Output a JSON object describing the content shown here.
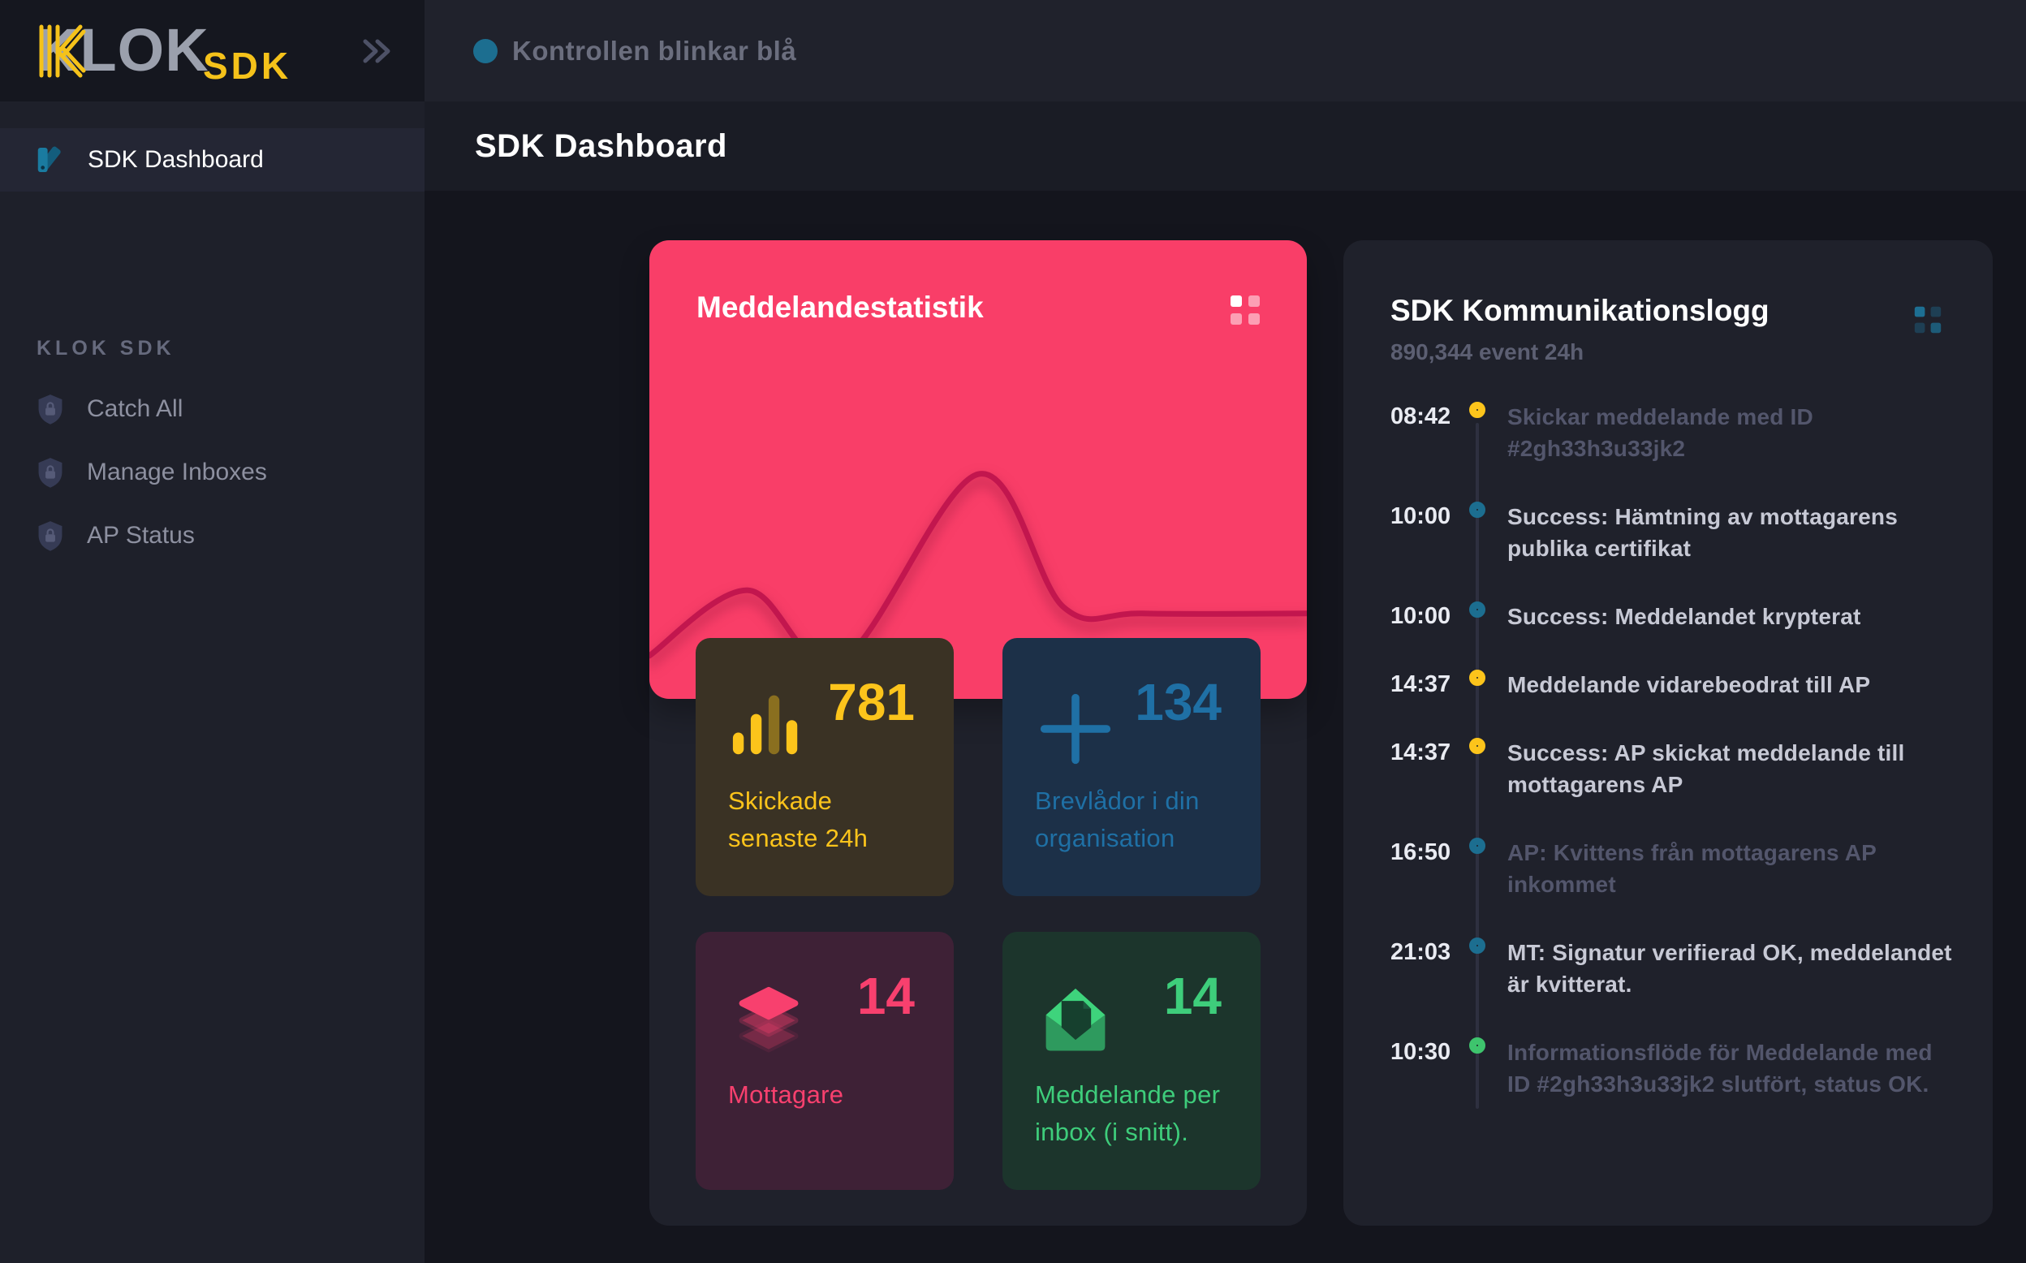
{
  "brand": {
    "name_main": "KLOK",
    "name_sub": "SDK",
    "accent_yellow": "#f5c21a",
    "gray": "#9ba0ad"
  },
  "topbar": {
    "status_text": "Kontrollen blinkar blå",
    "status_dot_color": "#1c6e90"
  },
  "page": {
    "title": "SDK Dashboard"
  },
  "sidebar": {
    "active_item": {
      "label": "SDK Dashboard"
    },
    "section_label": "KLOK SDK",
    "items": [
      {
        "label": "Catch All"
      },
      {
        "label": "Manage Inboxes"
      },
      {
        "label": "AP Status"
      }
    ]
  },
  "stats_card": {
    "title": "Meddelandestatistik",
    "bg_color": "#f93e68",
    "menu_icon_color": "#ffffff",
    "tiles": [
      {
        "value": "781",
        "label": "Skickade senaste 24h",
        "icon": "bar-chart-icon",
        "color": "#fcc41b",
        "bg": "#3a3224"
      },
      {
        "value": "134",
        "label": "Brevlådor i din organisation",
        "icon": "plus-icon",
        "color": "#1f70a5",
        "bg": "#1c3048"
      },
      {
        "value": "14",
        "label": "Mottagare",
        "icon": "layers-icon",
        "color": "#f8406e",
        "bg": "#3e2136"
      },
      {
        "value": "14",
        "label": "Meddelande per inbox (i snitt).",
        "icon": "envelope-open-icon",
        "color": "#3ecd7b",
        "bg": "#1c352c"
      }
    ]
  },
  "chart_data": {
    "type": "line",
    "title": "Meddelandestatistik",
    "x": [
      0,
      15,
      29,
      50,
      63,
      75,
      100
    ],
    "y": [
      7,
      38,
      4,
      93,
      30,
      27,
      27
    ],
    "x_range": [
      0,
      100
    ],
    "y_range": [
      0,
      100
    ],
    "xlabel": "",
    "ylabel": "",
    "grid": false,
    "axes_visible": false,
    "legend": "none",
    "line_color": "#c2164e"
  },
  "log_panel": {
    "title": "SDK Kommunikationslogg",
    "subtitle": "890,344 event 24h",
    "menu_icon_color": "#1d6f93",
    "events": [
      {
        "time": "08:42",
        "marker_color": "#fcc41b",
        "text": "Skickar meddelande med ID #2gh33h3u33jk2",
        "text_color": "#53566c"
      },
      {
        "time": "10:00",
        "marker_color": "#1c6e90",
        "text": "Success: Hämtning av mottagarens publika certifikat",
        "text_color": "#c7c9d5"
      },
      {
        "time": "10:00",
        "marker_color": "#1c6e90",
        "text": "Success: Meddelandet krypterat",
        "text_color": "#c7c9d5"
      },
      {
        "time": "14:37",
        "marker_color": "#fcc41b",
        "text": "Meddelande vidarebeodrat till AP",
        "text_color": "#c7c9d5"
      },
      {
        "time": "14:37",
        "marker_color": "#fcc41b",
        "text": "Success: AP skickat meddelande till mottagarens AP",
        "text_color": "#c7c9d5"
      },
      {
        "time": "16:50",
        "marker_color": "#1c6e90",
        "text": "AP: Kvittens från mottagarens AP inkommet",
        "text_color": "#53566c"
      },
      {
        "time": "21:03",
        "marker_color": "#1c6e90",
        "text": "MT: Signatur verifierad OK, meddelandet är kvitterat.",
        "text_color": "#c7c9d5"
      },
      {
        "time": "10:30",
        "marker_color": "#3ec46d",
        "text": "Informationsflöde för Meddelande med ID #2gh33h3u33jk2 slutfört, status OK.",
        "text_color": "#53566c"
      }
    ]
  }
}
